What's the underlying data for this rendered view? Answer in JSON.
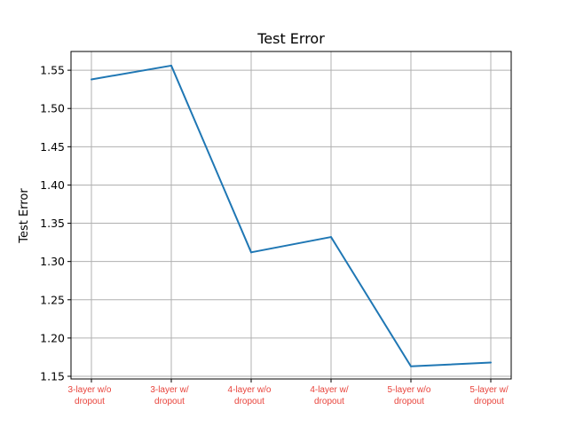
{
  "chart_data": {
    "type": "line",
    "title": "Test Error",
    "xlabel": "",
    "ylabel": "Test Error",
    "categories": [
      "3-layer w/o dropout",
      "3-layer w/ dropout",
      "4-layer w/o dropout",
      "4-layer w/ dropout",
      "5-layer w/o dropout",
      "5-layer w/ dropout"
    ],
    "category_lines": [
      [
        "3-layer w/o",
        "dropout"
      ],
      [
        "3-layer w/",
        "dropout"
      ],
      [
        "4-layer w/o",
        "dropout"
      ],
      [
        "4-layer w/",
        "dropout"
      ],
      [
        "5-layer w/o",
        "dropout"
      ],
      [
        "5-layer w/",
        "dropout"
      ]
    ],
    "series": [
      {
        "values": [
          1.538,
          1.556,
          1.312,
          1.332,
          1.163,
          1.168
        ]
      }
    ],
    "yticks": [
      "1.15",
      "1.20",
      "1.25",
      "1.30",
      "1.35",
      "1.40",
      "1.45",
      "1.50",
      "1.55"
    ],
    "ylim": [
      1.1465,
      1.5745
    ],
    "grid": true,
    "legend": "none",
    "colors": {
      "line": "#1f77b4",
      "xtick_label": "#e8423a",
      "grid": "#b0b0b0",
      "axes": "#000000"
    }
  }
}
